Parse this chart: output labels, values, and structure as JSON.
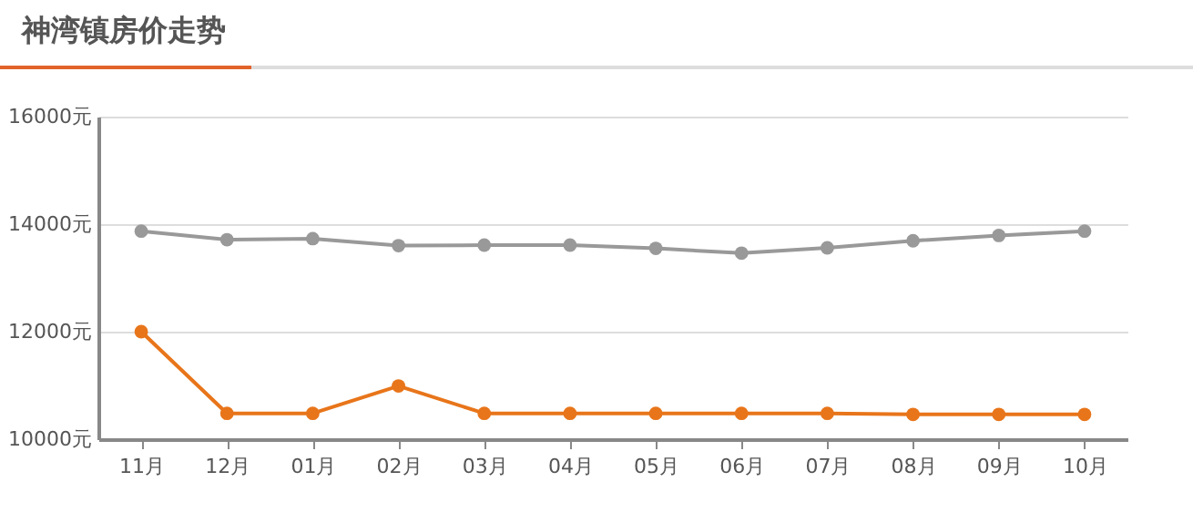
{
  "chart_data": {
    "type": "line",
    "title": "神湾镇房价走势",
    "categories": [
      "11月",
      "12月",
      "01月",
      "02月",
      "03月",
      "04月",
      "05月",
      "06月",
      "07月",
      "08月",
      "09月",
      "10月"
    ],
    "series": [
      {
        "color": "#999999",
        "values": [
          13870,
          13710,
          13730,
          13600,
          13610,
          13610,
          13550,
          13460,
          13560,
          13690,
          13790,
          13870
        ]
      },
      {
        "color": "#e8751a",
        "values": [
          12000,
          10480,
          10480,
          10990,
          10480,
          10480,
          10480,
          10480,
          10480,
          10460,
          10460,
          10460
        ]
      }
    ],
    "ylim": [
      10000,
      16000
    ],
    "yticks": [
      {
        "value": 10000,
        "label": "10000元"
      },
      {
        "value": 12000,
        "label": "12000元"
      },
      {
        "value": 14000,
        "label": "14000元"
      },
      {
        "value": 16000,
        "label": "16000元"
      }
    ],
    "grid": "y",
    "marker": "circle"
  }
}
